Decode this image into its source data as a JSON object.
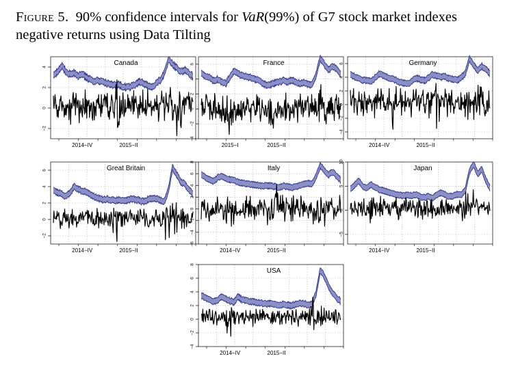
{
  "caption": {
    "label": "Figure 5.",
    "text_before": "90% confidence intervals for ",
    "var_symbol": "VaR",
    "var_arg": "(99%)",
    "text_after": " of G7 stock market indexes negative returns using Data Tilting"
  },
  "colors": {
    "interval_band": "#8a8fc4",
    "interval_edge": "#2e3192",
    "returns": "#000000",
    "grid": "#b5b5b5"
  },
  "chart_data": [
    {
      "type": "line",
      "title": "Canada",
      "ylim": [
        -3,
        5
      ],
      "yticks": [
        -2,
        0,
        2,
        4
      ],
      "tick_labels": [
        "2014-IV",
        "2015-II"
      ],
      "var_shape": [
        3.2,
        3.5,
        4.1,
        3.6,
        3.3,
        3.4,
        3.1,
        3.3,
        3.0,
        2.8,
        2.6,
        2.7,
        2.5,
        2.4,
        2.3,
        2.2,
        2.3,
        2.1,
        2.0,
        2.1,
        2.3,
        2.6,
        2.4,
        2.2,
        2.1,
        2.4,
        2.7,
        3.3,
        4.7,
        4.3,
        3.9,
        3.5,
        3.7,
        3.4,
        3.1
      ],
      "returns_amplitude": 1.1,
      "returns_offset": 0.2,
      "returns_bursts": [
        0.45,
        0.83,
        0.88
      ]
    },
    {
      "type": "line",
      "title": "France",
      "ylim": [
        -4,
        7
      ],
      "yticks": [
        -4,
        -2,
        0,
        2,
        4,
        6
      ],
      "tick_labels": [
        "2015-I",
        "2015-II"
      ],
      "var_shape": [
        4.8,
        4.4,
        4.2,
        3.8,
        4.0,
        3.6,
        3.4,
        4.3,
        5.1,
        4.7,
        4.5,
        4.3,
        4.2,
        4.0,
        3.8,
        3.4,
        3.2,
        3.3,
        3.5,
        3.6,
        3.8,
        3.6,
        3.9,
        3.6,
        3.4,
        3.5,
        3.3,
        3.2,
        4.6,
        6.8,
        6.0,
        5.2,
        5.7,
        5.4,
        4.6
      ],
      "returns_amplitude": 1.4,
      "returns_offset": 0.0,
      "returns_bursts": [
        0.2,
        0.5,
        0.86
      ]
    },
    {
      "type": "line",
      "title": "Germany",
      "ylim": [
        -5,
        7
      ],
      "yticks": [
        -4,
        -2,
        0,
        2,
        4,
        6
      ],
      "tick_labels": [
        "2014-IV",
        "2015-II"
      ],
      "var_shape": [
        4.4,
        4.1,
        3.8,
        3.6,
        3.5,
        3.4,
        3.9,
        4.5,
        4.2,
        4.0,
        3.8,
        3.6,
        3.3,
        3.2,
        3.0,
        3.4,
        3.9,
        3.7,
        3.5,
        3.9,
        4.4,
        4.2,
        4.0,
        4.1,
        3.8,
        3.7,
        3.6,
        3.9,
        4.6,
        6.7,
        5.8,
        5.0,
        5.6,
        5.2,
        4.5
      ],
      "returns_amplitude": 1.6,
      "returns_offset": 0.4,
      "returns_bursts": [
        0.3,
        0.62,
        0.84,
        0.92
      ]
    },
    {
      "type": "line",
      "title": "Great Britain",
      "ylim": [
        -3,
        7
      ],
      "yticks": [
        -2,
        0,
        2,
        4,
        6
      ],
      "tick_labels": [
        "2014-IV",
        "2015-II"
      ],
      "var_shape": [
        3.5,
        3.3,
        3.1,
        2.8,
        3.2,
        4.0,
        3.7,
        3.5,
        3.3,
        3.0,
        2.8,
        2.6,
        2.4,
        2.5,
        2.4,
        2.3,
        2.4,
        2.2,
        2.3,
        2.5,
        2.4,
        2.3,
        2.2,
        2.4,
        2.6,
        2.5,
        2.3,
        2.2,
        3.5,
        6.3,
        5.5,
        4.6,
        4.3,
        3.7,
        3.0
      ],
      "returns_amplitude": 1.0,
      "returns_offset": 0.2,
      "returns_bursts": [
        0.45,
        0.82,
        0.87
      ]
    },
    {
      "type": "line",
      "title": "Italy",
      "ylim": [
        -6,
        8
      ],
      "yticks": [
        -6,
        -4,
        -2,
        0,
        2,
        4,
        6,
        8
      ],
      "tick_labels": [
        "2014-IV",
        "2015-II"
      ],
      "var_shape": [
        5.8,
        5.4,
        5.0,
        4.7,
        5.3,
        5.6,
        5.2,
        5.0,
        4.8,
        4.6,
        4.4,
        4.3,
        4.2,
        4.1,
        4.0,
        3.9,
        4.0,
        3.9,
        3.8,
        3.7,
        3.9,
        3.8,
        3.6,
        3.8,
        4.0,
        4.2,
        4.4,
        4.3,
        5.5,
        7.4,
        6.6,
        5.8,
        6.3,
        5.6,
        4.9
      ],
      "returns_amplitude": 1.8,
      "returns_offset": 0.0,
      "returns_bursts": [
        0.2,
        0.55,
        0.85
      ]
    },
    {
      "type": "line",
      "title": "Japan",
      "ylim": [
        -7,
        10
      ],
      "yticks": [
        -5,
        0,
        5,
        10
      ],
      "tick_labels": [
        "2014-IV",
        "2015-II"
      ],
      "var_shape": [
        4.3,
        5.2,
        6.1,
        5.0,
        4.6,
        5.3,
        4.8,
        4.3,
        4.1,
        3.8,
        3.5,
        3.3,
        3.1,
        3.0,
        3.2,
        3.0,
        3.3,
        2.8,
        2.6,
        2.9,
        2.5,
        3.2,
        3.6,
        3.3,
        2.8,
        3.0,
        3.3,
        3.1,
        4.2,
        8.1,
        9.6,
        7.5,
        8.5,
        6.2,
        4.6
      ],
      "returns_amplitude": 1.5,
      "returns_offset": 0.5,
      "returns_bursts": [
        0.15,
        0.83,
        0.88
      ]
    },
    {
      "type": "line",
      "title": "USA",
      "ylim": [
        -4,
        8
      ],
      "yticks": [
        -4,
        -2,
        0,
        2,
        4,
        6,
        8
      ],
      "tick_labels": [
        "2014-IV",
        "2015-II"
      ],
      "var_shape": [
        3.5,
        3.1,
        2.8,
        2.6,
        2.8,
        3.3,
        3.0,
        2.7,
        2.5,
        3.3,
        2.8,
        2.7,
        2.6,
        2.5,
        2.4,
        2.3,
        2.2,
        2.3,
        2.1,
        2.0,
        2.2,
        2.1,
        2.0,
        2.2,
        2.4,
        2.3,
        2.1,
        2.2,
        3.8,
        7.2,
        6.3,
        4.8,
        3.9,
        3.1,
        2.6
      ],
      "returns_amplitude": 0.9,
      "returns_offset": 0.3,
      "returns_bursts": [
        0.2,
        0.8,
        0.86
      ]
    }
  ]
}
